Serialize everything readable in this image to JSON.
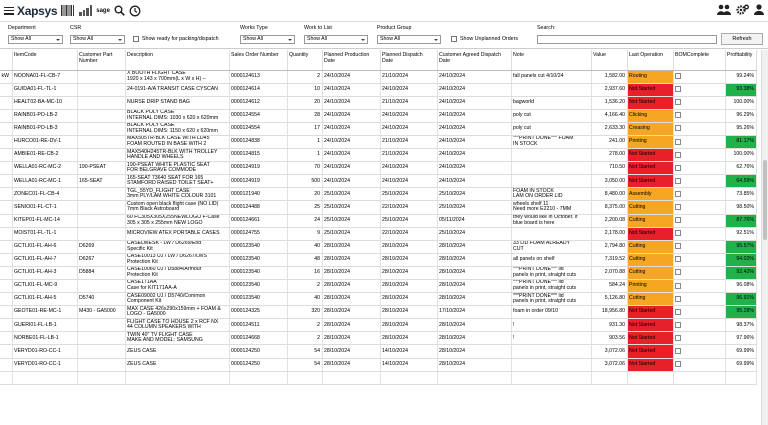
{
  "app": {
    "logo": "Xapsys",
    "sage_label": "sage"
  },
  "filters": {
    "department": {
      "label": "Department",
      "value": "Show All"
    },
    "csr": {
      "label": "CSR",
      "value": "Show All"
    },
    "show_ready_label": "Show ready for packing/dispatch",
    "works_type": {
      "label": "Works Type",
      "value": "Show All"
    },
    "work_to_list": {
      "label": "Work to List",
      "value": "Show All"
    },
    "product_group": {
      "label": "Product Group",
      "value": "Show All"
    },
    "show_unplanned_label": "Show Unplanned Orders",
    "search_label": "Search:",
    "search_value": "",
    "refresh_label": "Refresh"
  },
  "columns": [
    "",
    "ItemCode",
    "Customer Part Number",
    "Description",
    "Sales Order Number",
    "Quantity",
    "Planned Production Date",
    "Planned Dispatch Date",
    "Customer Agreed Dispatch Date",
    "Note",
    "Value",
    "Last Operation",
    "BOMComplete",
    "Profitability"
  ],
  "rows": [
    {
      "m": "kW",
      "code": "NOONA01-FL-CB-7",
      "cpn": "",
      "desc": "X BOOTH FLIGHT CASE\n1920 x 143 x 700mm(L x W x H) –",
      "so": "0000124613",
      "qty": "2",
      "ppd": "24/10/2024",
      "pdd": "21/10/2024",
      "cadd": "24/10/2024",
      "note": "fall panels cut 4/10/24",
      "val": "1,582.00",
      "op": "Routing",
      "opc": "routing",
      "prof": "99.24%",
      "pg": false
    },
    {
      "m": "",
      "code": "GUIDA01-FL-TL-1",
      "cpn": "",
      "desc": "24-0191-A/A TRANSIT CASE CYSCAN",
      "so": "0000124614",
      "qty": "10",
      "ppd": "24/10/2024",
      "pdd": "24/10/2024",
      "cadd": "24/10/2024",
      "note": "",
      "val": "2,937.60",
      "op": "Not Started",
      "opc": "notstarted",
      "prof": "93.38%",
      "pg": true
    },
    {
      "m": "",
      "code": "HEALT02-BA-MC-10",
      "cpn": "",
      "desc": "NURSE DRIP STAND BAG",
      "so": "0000124612",
      "qty": "20",
      "ppd": "24/10/2024",
      "pdd": "21/10/2024",
      "cadd": "24/10/2024",
      "note": "bagworld",
      "val": "1,536.20",
      "op": "Not Started",
      "opc": "notstarted",
      "prof": "100.00%",
      "pg": false
    },
    {
      "m": "",
      "code": "RAINB01-PO-LB-2",
      "cpn": "",
      "desc": "BLACK POLY CASE\nINTERNAL DIMS: 1030 x 620 x 620mm",
      "so": "0000124554",
      "qty": "28",
      "ppd": "24/10/2024",
      "pdd": "24/10/2024",
      "cadd": "24/10/2024",
      "note": "poly cut",
      "val": "4,166.40",
      "op": "Clicking",
      "opc": "clicking",
      "prof": "96.29%",
      "pg": false
    },
    {
      "m": "",
      "code": "RAINB01-PO-LB-3",
      "cpn": "",
      "desc": "BLACK POLY CASE\nINTERNAL DIMS: 1150 x 620 x 620mm",
      "so": "0000124554",
      "qty": "17",
      "ppd": "24/10/2024",
      "pdd": "24/10/2024",
      "cadd": "24/10/2024",
      "note": "poly cut",
      "val": "2,633.30",
      "op": "Creasing",
      "opc": "creasing",
      "prof": "95.26%",
      "pg": false
    },
    {
      "m": "",
      "code": "HURCO01-RE-DV-1",
      "cpn": "",
      "desc": "MAX505TR-BLK CASE WITH LD45\nFOAM ROUTED IN BASE WITH 2",
      "so": "0000124838",
      "qty": "1",
      "ppd": "24/10/2024",
      "pdd": "21/10/2024",
      "cadd": "24/10/2024",
      "note": "***PRINT DONE***         FOAM\nIN STOCK",
      "val": "241.00",
      "op": "Printing",
      "opc": "printing",
      "prof": "81.17%",
      "pg": true
    },
    {
      "m": "",
      "code": "AMBIE01-RE-CB-2",
      "cpn": "",
      "desc": "MAX540H245TR-BLK WITH TROLLEY\nHANDLE AND WHEELS",
      "so": "0000124815",
      "qty": "1",
      "ppd": "24/10/2024",
      "pdd": "21/10/2024",
      "cadd": "24/10/2024",
      "note": "",
      "val": "278.00",
      "op": "Not Started",
      "opc": "notstarted",
      "prof": "100.00%",
      "pg": false
    },
    {
      "m": "",
      "code": "WELLA01-RC-MC-2",
      "cpn": "190-PSEAT",
      "desc": "190-PSEAT WHITE PLASTIC SEAT\nFOR BELGRAVE COMMODE",
      "so": "0000124919",
      "qty": "70",
      "ppd": "24/10/2024",
      "pdd": "24/10/2024",
      "cadd": "24/10/2024",
      "note": "",
      "val": "710.50",
      "op": "Not Started",
      "opc": "notstarted",
      "prof": "62.76%",
      "pg": false
    },
    {
      "m": "",
      "code": "WELLA01-RC-MC-1",
      "cpn": "165-SEAT",
      "desc": "165-SEAT  73640 SEAT FOR 165\nSTAMFORD RAISED TOILET SEAT+",
      "so": "0000124919",
      "qty": "500",
      "ppd": "24/10/2024",
      "pdd": "24/10/2024",
      "cadd": "24/10/2024",
      "note": "",
      "val": "3,050.00",
      "op": "Not Started",
      "opc": "notstarted",
      "prof": "64.59%",
      "pg": true
    },
    {
      "m": "",
      "code": "ZONEC01-FL-CB-4",
      "cpn": "",
      "desc": "TGL_55YD_FLIGHT CASE\n3mm PLY/LAM WHITE COLOUR 3101",
      "so": "0000121940",
      "qty": "20",
      "ppd": "25/10/2024",
      "pdd": "25/10/2024",
      "cadd": "25/10/2024",
      "note": "FOAM IN STOCK\nLAM ON ORDER LID",
      "val": "8,480.00",
      "op": "Assembly",
      "opc": "assembly",
      "prof": "73.85%",
      "pg": false
    },
    {
      "m": "",
      "code": "SENIO01-FL-CT-1",
      "cpn": "",
      "desc": "Custom open black flight case (NO LID)\n7mm Black Astroboard",
      "so": "0000124488",
      "qty": "25",
      "ppd": "25/10/2024",
      "pdd": "22/10/2024",
      "cadd": "25/10/2024",
      "note": "wheels shelf 11\nNeed more E2210 - 7MM",
      "val": "8,375.00",
      "op": "Cutting",
      "opc": "cutting",
      "prof": "98.50%",
      "pg": false
    },
    {
      "m": "",
      "code": "KITEP01-FL-MC-14",
      "cpn": "",
      "desc": "60 FC305X305X255NEWLOGO F-Case\n305 x 305 x 255mm NEW LOGO",
      "so": "0000124661",
      "qty": "24",
      "ppd": "25/10/2024",
      "pdd": "25/10/2024",
      "cadd": "05/11/2024",
      "note": "they would like in October, if\nblue board is here",
      "val": "2,200.08",
      "op": "Cutting",
      "opc": "cutting",
      "prof": "87.76%",
      "pg": true
    },
    {
      "m": "",
      "code": "MOIST01-FL-TL-1",
      "cpn": "",
      "desc": "MICROVIEW ATEX PORTABLE CASES",
      "so": "0000124755",
      "qty": "9",
      "ppd": "25/10/2024",
      "pdd": "22/10/2024",
      "cadd": "25/10/2024",
      "note": "",
      "val": "2,178.00",
      "op": "Not Started",
      "opc": "notstarted",
      "prof": "92.51%",
      "pg": false
    },
    {
      "m": "",
      "code": "GCTLI01-FL-AH-6",
      "cpn": "D6269",
      "desc": "CASELWESK - LW / D6269/End\nSpecific Kit",
      "so": "0000123540",
      "qty": "40",
      "ppd": "28/10/2024",
      "pdd": "28/10/2024",
      "cadd": "28/10/2024",
      "note": "33 LID FOAM ALREADY\nCUT",
      "val": "2,794.80",
      "op": "Cutting",
      "opc": "cutting",
      "prof": "95.57%",
      "pg": true
    },
    {
      "m": "",
      "code": "GCTLI01-FL-AH-7",
      "cpn": "D6267",
      "desc": "CASE10013 UJ / LW / D6267/LWS\nProtection Kit",
      "so": "0000123540",
      "qty": "48",
      "ppd": "28/10/2024",
      "pdd": "28/10/2024",
      "cadd": "28/10/2024",
      "note": "all panels on shelf",
      "val": "7,319.52",
      "op": "Cutting",
      "opc": "cutting",
      "prof": "94.02%",
      "pg": true
    },
    {
      "m": "",
      "code": "GCTLI01-FL-AH-3",
      "cpn": "D5884",
      "desc": "CASE10060 UJ / D5884/Armour\nProtection Kit",
      "so": "0000123540",
      "qty": "16",
      "ppd": "28/10/2024",
      "pdd": "28/10/2024",
      "cadd": "28/10/2024",
      "note": "***PRINT DONE***        lid\npanels in print, straight cuts",
      "val": "2,070.88",
      "op": "Cutting",
      "opc": "cutting",
      "prof": "92.42%",
      "pg": true
    },
    {
      "m": "",
      "code": "GCTLI01-FL-MC-9",
      "cpn": "",
      "desc": "CASE171AA\nCase for KIT171AA-A",
      "so": "0000123540",
      "qty": "2",
      "ppd": "28/10/2024",
      "pdd": "28/10/2024",
      "cadd": "28/10/2024",
      "note": "***PRINT DONE***       lid\npanels in print, straight cuts",
      "val": "584.24",
      "op": "Printing",
      "opc": "printing",
      "prof": "96.08%",
      "pg": false
    },
    {
      "m": "",
      "code": "GCTLI01-FL-AH-5",
      "cpn": "D5740",
      "desc": "CASE09002 UJ / D5740/Common\nComponent Kit",
      "so": "0000123540",
      "qty": "40",
      "ppd": "28/10/2024",
      "pdd": "28/10/2024",
      "cadd": "28/10/2024",
      "note": "***PRINT DONE***        lid\npanels in print, straight cuts",
      "val": "5,126.80",
      "op": "Cutting",
      "opc": "cutting",
      "prof": "96.91%",
      "pg": true
    },
    {
      "m": "",
      "code": "GEOTE01-RE-MC-1",
      "cpn": "M430 - GA5000",
      "desc": "MAX CASE 426x290x159mm + FOAM &\nLOGO - GA5000",
      "so": "0000124325",
      "qty": "320",
      "ppd": "28/10/2024",
      "pdd": "28/10/2024",
      "cadd": "17/10/2024",
      "note": "foam in order 09/10",
      "val": "18,956.80",
      "op": "Not Started",
      "opc": "notstarted",
      "prof": "95.28%",
      "pg": true
    },
    {
      "m": "",
      "code": "GUERI01-FL-LB-1",
      "cpn": "",
      "desc": "FLIGHT CASE TO HOUSE 2 x RCF NX\n44 COLUMN SPEAKERS WITH",
      "so": "0000124511",
      "qty": "2",
      "ppd": "28/10/2024",
      "pdd": "28/10/2024",
      "cadd": "28/10/2024",
      "note": "!",
      "val": "931.30",
      "op": "Not Started",
      "opc": "notstarted",
      "prof": "98.37%",
      "pg": false
    },
    {
      "m": "",
      "code": "NORBE01-FL-LB-1",
      "cpn": "",
      "desc": "TWIN 40\" TV FLIGHT CASE\nMAKE AND MODEL: SAMSUNG",
      "so": "0000124668",
      "qty": "2",
      "ppd": "28/10/2024",
      "pdd": "28/10/2024",
      "cadd": "28/10/2024",
      "note": "!",
      "val": "903.56",
      "op": "Not Started",
      "opc": "notstarted",
      "prof": "97.96%",
      "pg": false
    },
    {
      "m": "",
      "code": "VERYD01-RO-CC-1",
      "cpn": "",
      "desc": "ZEUS CASE",
      "so": "0000124250",
      "qty": "54",
      "ppd": "28/10/2024",
      "pdd": "14/10/2024",
      "cadd": "28/10/2024",
      "note": "",
      "val": "3,072.06",
      "op": "Not Started",
      "opc": "notstarted",
      "prof": "69.99%",
      "pg": false
    },
    {
      "m": "",
      "code": "VERYD01-RO-CC-1",
      "cpn": "",
      "desc": "ZEUS CASE",
      "so": "0000124250",
      "qty": "54",
      "ppd": "28/10/2024",
      "pdd": "14/10/2024",
      "cadd": "28/10/2024",
      "note": "",
      "val": "3,072.06",
      "op": "Not Started",
      "opc": "notstarted",
      "prof": "69.99%",
      "pg": false
    },
    {
      "m": "",
      "code": "",
      "cpn": "",
      "desc": "",
      "so": "",
      "qty": "",
      "ppd": "",
      "pdd": "",
      "cadd": "",
      "note": "",
      "val": "",
      "op": "",
      "opc": "",
      "prof": "",
      "pg": false
    }
  ]
}
